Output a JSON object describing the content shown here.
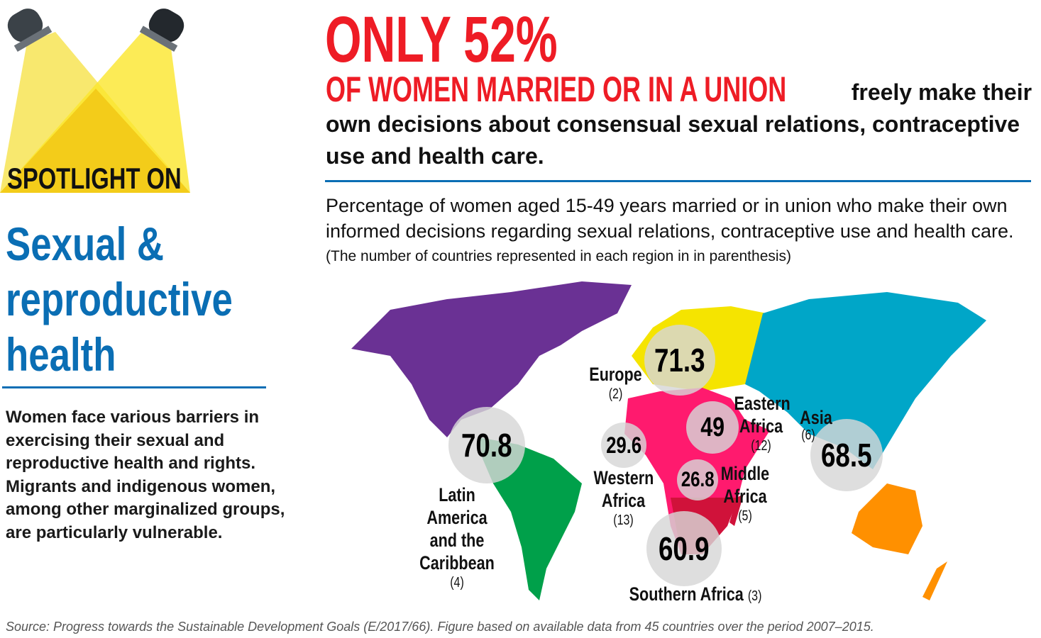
{
  "sidebar": {
    "badge": "SPOTLIGHT ON",
    "title_lines": [
      "Sexual &",
      "reproductive",
      "health"
    ],
    "body": "Women face various barriers in exercising their sexual and reproductive health and rights. Migrants and indigenous women, among other marginalized groups, are particularly vulnerable."
  },
  "header": {
    "headline": "ONLY 52%",
    "subhead_red": "OF WOMEN MARRIED OR IN A UNION",
    "subhead_black": "freely make their own decisions about consensual sexual relations, contraceptive use and health care."
  },
  "figure": {
    "description": "Percentage of women aged 15-49 years married or in union who make their own informed decisions regarding sexual relations, contraceptive use and health care.",
    "note": "(The number of countries represented in each region in in parenthesis)"
  },
  "chart_data": {
    "type": "map-bubble",
    "regions": [
      {
        "name": "Latin America and the Caribbean",
        "countries": "(4)",
        "value": "70.8",
        "color": "#00a04a"
      },
      {
        "name": "Europe",
        "countries": "(2)",
        "value": "71.3",
        "color": "#f5e400"
      },
      {
        "name": "Western Africa",
        "countries": "(13)",
        "value": "29.6",
        "color": "#ff1a6e"
      },
      {
        "name": "Eastern Africa",
        "countries": "(12)",
        "value": "49",
        "color": "#ff1a6e"
      },
      {
        "name": "Middle Africa",
        "countries": "(5)",
        "value": "26.8",
        "color": "#e8124a"
      },
      {
        "name": "Southern Africa",
        "countries": "(3)",
        "value": "60.9",
        "color": "#d0123a"
      },
      {
        "name": "Asia",
        "countries": "(6)",
        "value": "68.5",
        "color": "#00a6c8"
      }
    ],
    "other_colors": {
      "north_america": "#6a3194",
      "oceania": "#ff9000"
    }
  },
  "colors": {
    "accent_red": "#ee1c25",
    "accent_blue": "#0a6eb4"
  },
  "source": "Source: Progress towards the Sustainable Development Goals (E/2017/66). Figure based on available data from 45 countries over the period 2007–2015."
}
